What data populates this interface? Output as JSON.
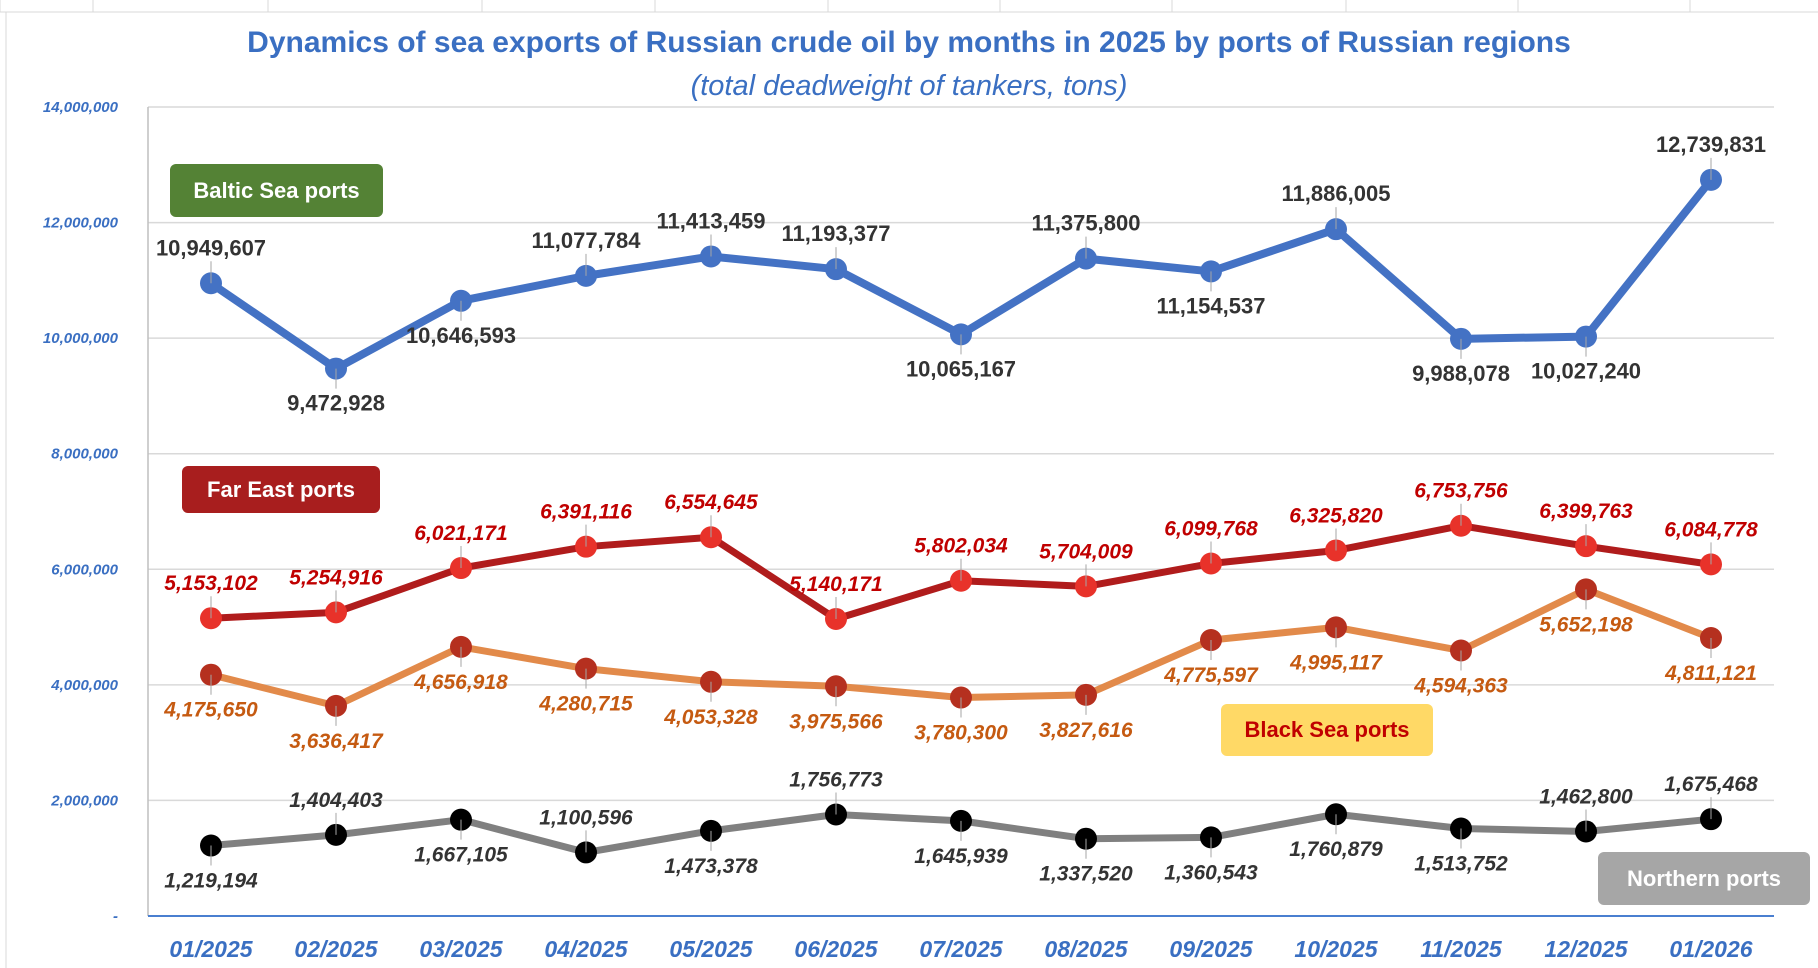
{
  "chart_data": {
    "type": "line",
    "title": "Dynamics of sea exports of Russian crude oil by months in 2025 by ports of Russian regions",
    "subtitle": "(total deadweight of tankers, tons)",
    "xlabel": "",
    "ylabel": "",
    "ylim": [
      0,
      14000000
    ],
    "grid": true,
    "categories": [
      "01/2025",
      "02/2025",
      "03/2025",
      "04/2025",
      "05/2025",
      "06/2025",
      "07/2025",
      "08/2025",
      "09/2025",
      "10/2025",
      "11/2025",
      "12/2025",
      "01/2026"
    ],
    "y_ticks": [
      "-",
      "2,000,000",
      "4,000,000",
      "6,000,000",
      "8,000,000",
      "10,000,000",
      "12,000,000",
      "14,000,000"
    ],
    "series": [
      {
        "name": "Baltic Sea ports",
        "line_color": "#4472c4",
        "marker_color": "#4472c4",
        "label_color": "#333333",
        "legend_bg": "#548235",
        "legend_fg": "#ffffff",
        "values": [
          10949607,
          9472928,
          10646593,
          11077784,
          11413459,
          11193377,
          10065167,
          11375800,
          11154537,
          11886005,
          9988078,
          10027240,
          12739831
        ],
        "labels": [
          "10,949,607",
          "9,472,928",
          "10,646,593",
          "11,077,784",
          "11,413,459",
          "11,193,377",
          "10,065,167",
          "11,375,800",
          "11,154,537",
          "11,886,005",
          "9,988,078",
          "10,027,240",
          "12,739,831"
        ]
      },
      {
        "name": "Far East ports",
        "line_color": "#b01c1c",
        "marker_color": "#e8322a",
        "label_color": "#c00000",
        "legend_bg": "#a81e1e",
        "legend_fg": "#ffffff",
        "values": [
          5153102,
          5254916,
          6021171,
          6391116,
          6554645,
          5140171,
          5802034,
          5704009,
          6099768,
          6325820,
          6753756,
          6399763,
          6084778
        ],
        "labels": [
          "5,153,102",
          "5,254,916",
          "6,021,171",
          "6,391,116",
          "6,554,645",
          "5,140,171",
          "5,802,034",
          "5,704,009",
          "6,099,768",
          "6,325,820",
          "6,753,756",
          "6,399,763",
          "6,084,778"
        ]
      },
      {
        "name": "Black Sea ports",
        "line_color": "#e28a4a",
        "marker_color": "#b5301f",
        "label_color": "#c55a11",
        "legend_bg": "#ffd966",
        "legend_fg": "#c00000",
        "values": [
          4175650,
          3636417,
          4656918,
          4280715,
          4053328,
          3975566,
          3780300,
          3827616,
          4775597,
          4995117,
          4594363,
          5652198,
          4811121
        ],
        "labels": [
          "4,175,650",
          "3,636,417",
          "4,656,918",
          "4,280,715",
          "4,053,328",
          "3,975,566",
          "3,780,300",
          "3,827,616",
          "4,775,597",
          "4,995,117",
          "4,594,363",
          "5,652,198",
          "4,811,121"
        ]
      },
      {
        "name": "Northern ports",
        "line_color": "#808080",
        "marker_color": "#000000",
        "label_color": "#333333",
        "legend_bg": "#a6a6a6",
        "legend_fg": "#ffffff",
        "values": [
          1219194,
          1404403,
          1667105,
          1100596,
          1473378,
          1756773,
          1645939,
          1337520,
          1360543,
          1760879,
          1513752,
          1462800,
          1675468
        ],
        "labels": [
          "1,219,194",
          "1,404,403",
          "1,667,105",
          "1,100,596",
          "1,473,378",
          "1,756,773",
          "1,645,939",
          "1,337,520",
          "1,360,543",
          "1,760,879",
          "1,513,752",
          "1,462,800",
          "1,675,468"
        ]
      }
    ]
  }
}
